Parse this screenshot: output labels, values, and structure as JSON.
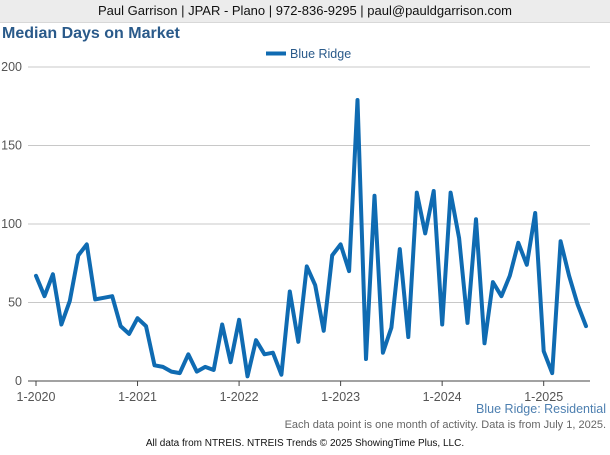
{
  "header": {
    "contact": "Paul Garrison | JPAR - Plano | 972-836-9295 | paul@pauldgarrison.com"
  },
  "chart_data": {
    "type": "line",
    "title": "Median Days on Market",
    "subtitle": "Blue Ridge: Residential",
    "note": "Each data point is one month of activity. Data is from July 1, 2025.",
    "footer": "All data from NTREIS. NTREIS Trends © 2025 ShowingTime Plus, LLC.",
    "ylim": [
      0,
      200
    ],
    "yticks": [
      0,
      50,
      100,
      150,
      200
    ],
    "xticks": [
      "1-2020",
      "1-2021",
      "1-2022",
      "1-2023",
      "1-2024",
      "1-2025"
    ],
    "grid": true,
    "legend_position": "top-center",
    "series": [
      {
        "name": "Blue Ridge",
        "color": "#0f6bb2",
        "start": "2020-01",
        "values": [
          67,
          54,
          68,
          36,
          51,
          80,
          87,
          52,
          53,
          54,
          35,
          30,
          40,
          35,
          10,
          9,
          6,
          5,
          17,
          6,
          9,
          7,
          36,
          12,
          39,
          3,
          26,
          17,
          18,
          4,
          57,
          25,
          73,
          61,
          32,
          80,
          87,
          70,
          179,
          14,
          118,
          18,
          34,
          84,
          28,
          120,
          94,
          121,
          36,
          120,
          91,
          37,
          103,
          24,
          63,
          54,
          67,
          88,
          74,
          107,
          19,
          5,
          89,
          67,
          49,
          35
        ]
      }
    ]
  }
}
